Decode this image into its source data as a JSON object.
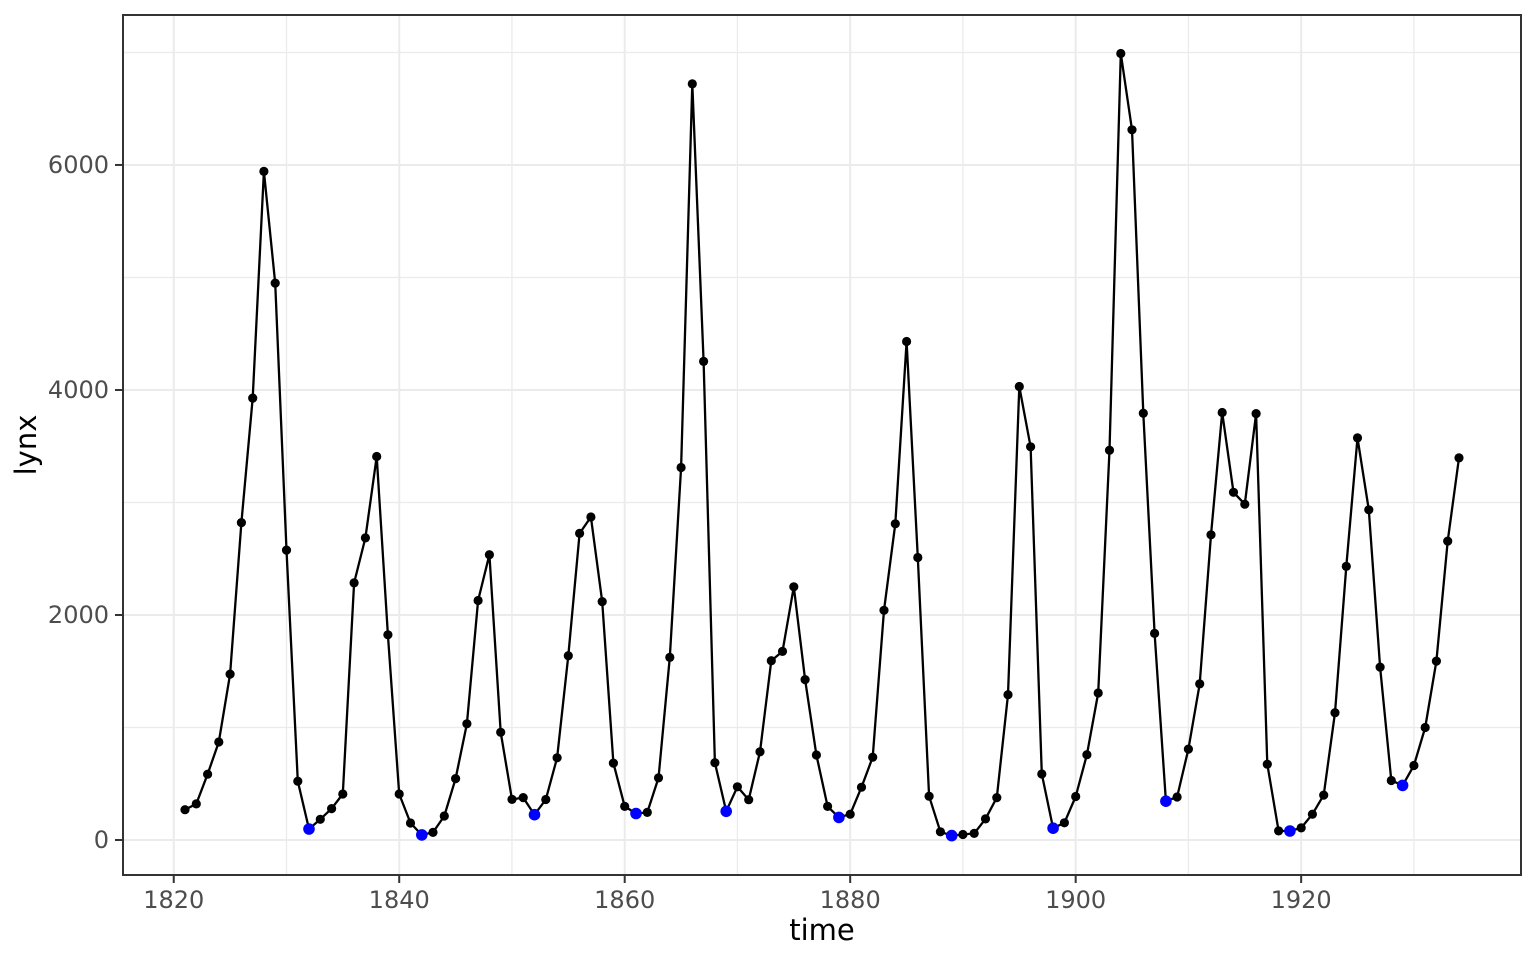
{
  "figure": {
    "background": "#FFFFFF"
  },
  "chart_data": {
    "type": "line",
    "title": "",
    "xlabel": "time",
    "ylabel": "lynx",
    "legend": "none",
    "grid": true,
    "xlim": [
      1815.5,
      1939.5
    ],
    "ylim": [
      -311,
      7333
    ],
    "x_major_ticks": [
      1820,
      1840,
      1860,
      1880,
      1900,
      1920
    ],
    "x_major_tick_labels": [
      "1820",
      "1840",
      "1860",
      "1880",
      "1900",
      "1920"
    ],
    "x_minor_ticks": [
      1830,
      1850,
      1870,
      1890,
      1910,
      1930
    ],
    "y_major_ticks": [
      0,
      2000,
      4000,
      6000
    ],
    "y_major_tick_labels": [
      "0",
      "2000",
      "4000",
      "6000"
    ],
    "y_minor_ticks": [
      1000,
      3000,
      5000,
      7000
    ],
    "series": {
      "name": "lynx",
      "x_start": 1821,
      "x_end": 1934,
      "values": [
        269,
        321,
        585,
        871,
        1475,
        2821,
        3928,
        5943,
        4950,
        2577,
        523,
        98,
        184,
        279,
        409,
        2285,
        2685,
        3409,
        1824,
        409,
        151,
        45,
        68,
        213,
        546,
        1033,
        2129,
        2536,
        957,
        361,
        377,
        225,
        360,
        731,
        1638,
        2725,
        2871,
        2119,
        684,
        299,
        236,
        245,
        552,
        1623,
        3311,
        6721,
        4254,
        687,
        255,
        473,
        358,
        784,
        1594,
        1676,
        2251,
        1426,
        756,
        299,
        201,
        229,
        469,
        736,
        2042,
        2811,
        4431,
        2511,
        389,
        73,
        39,
        49,
        59,
        188,
        377,
        1292,
        4031,
        3495,
        587,
        105,
        153,
        387,
        758,
        1307,
        3465,
        6991,
        6313,
        3794,
        1836,
        345,
        382,
        808,
        1388,
        2713,
        3800,
        3091,
        2985,
        3790,
        674,
        81,
        80,
        108,
        229,
        399,
        1132,
        2432,
        3574,
        2935,
        1537,
        529,
        485,
        662,
        1000,
        1590,
        2657,
        3396
      ]
    },
    "highlight_years": [
      1832,
      1842,
      1852,
      1861,
      1869,
      1879,
      1889,
      1898,
      1908,
      1919,
      1929
    ],
    "colors": {
      "line": "#000000",
      "point": "#000000",
      "highlight": "#0000FF",
      "grid": "#EBEBEB",
      "panel_border": "#333333",
      "tick_mark": "#333333",
      "tick_label": "#4D4D4D",
      "axis_title": "#000000",
      "background": "#FFFFFF"
    }
  }
}
